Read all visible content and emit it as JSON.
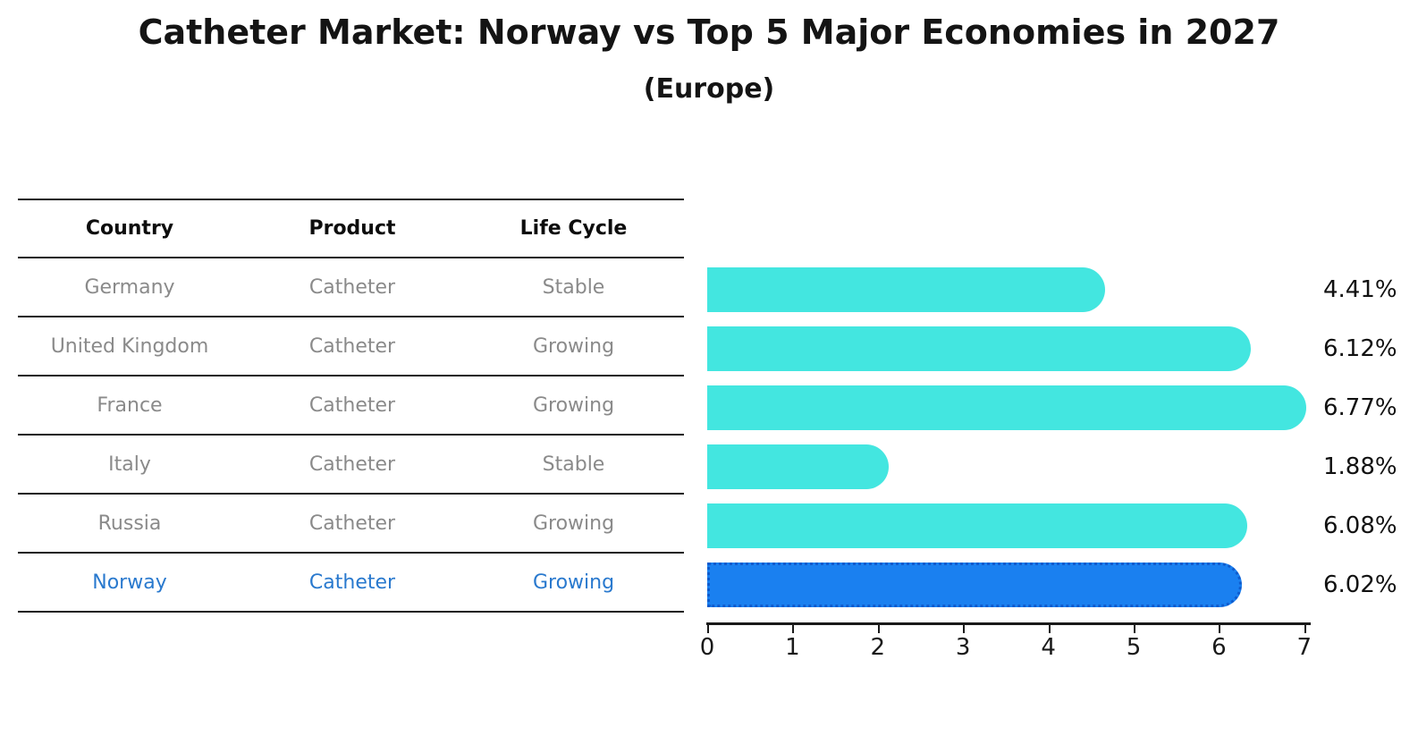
{
  "title": "Catheter Market: Norway vs Top 5 Major Economies in 2027",
  "subtitle": "(Europe)",
  "table": {
    "headers": [
      "Country",
      "Product",
      "Life Cycle"
    ],
    "rows": [
      {
        "country": "Germany",
        "product": "Catheter",
        "life_cycle": "Stable",
        "highlighted": false
      },
      {
        "country": "United Kingdom",
        "product": "Catheter",
        "life_cycle": "Growing",
        "highlighted": false
      },
      {
        "country": "France",
        "product": "Catheter",
        "life_cycle": "Growing",
        "highlighted": false
      },
      {
        "country": "Italy",
        "product": "Catheter",
        "life_cycle": "Stable",
        "highlighted": false
      },
      {
        "country": "Russia",
        "product": "Catheter",
        "life_cycle": "Growing",
        "highlighted": false
      },
      {
        "country": "Norway",
        "product": "Catheter",
        "life_cycle": "Growing",
        "highlighted": true
      }
    ]
  },
  "chart_data": {
    "type": "bar",
    "orientation": "horizontal",
    "title": "Catheter Market: Norway vs Top 5 Major Economies in 2027",
    "subtitle": "(Europe)",
    "categories": [
      "Germany",
      "United Kingdom",
      "France",
      "Italy",
      "Russia",
      "Norway"
    ],
    "values": [
      4.41,
      6.12,
      6.77,
      1.88,
      6.08,
      6.02
    ],
    "value_labels": [
      "4.41%",
      "6.12%",
      "6.77%",
      "1.88%",
      "6.08%",
      "6.02%"
    ],
    "xlim": [
      0,
      7
    ],
    "x_ticks": [
      "0",
      "1",
      "2",
      "3",
      "4",
      "5",
      "6",
      "7"
    ],
    "highlight_index": 5,
    "legend": "none",
    "grid": false
  },
  "colors": {
    "bar": "#43E6E0",
    "highlight_bar": "#1A80F0",
    "highlight_border": "#0E5BCD",
    "axis": "#1a1a1a",
    "row_text": "#8a8a8a",
    "highlight_text": "#2979CE",
    "title_text": "#141414"
  }
}
